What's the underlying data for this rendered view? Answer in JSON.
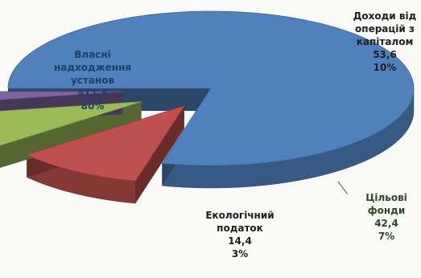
{
  "chart_data": {
    "type": "pie",
    "title": "",
    "slices": [
      {
        "label_lines": [
          "Власні",
          "надходження",
          "установ"
        ],
        "value": 411.8,
        "percent": "80%",
        "color": "#4f81bd"
      },
      {
        "label_lines": [
          "Доходи від",
          "операцій з",
          "капіталом"
        ],
        "value": 53.6,
        "percent": "10%",
        "color": "#c0504d"
      },
      {
        "label_lines": [
          "Цільові",
          "фонди"
        ],
        "value": 42.4,
        "percent": "7%",
        "color": "#9bbb59"
      },
      {
        "label_lines": [
          "Екологічний",
          "податок"
        ],
        "value": 14.4,
        "percent": "3%",
        "color": "#8064a2"
      }
    ],
    "value_format": "comma-decimal",
    "legend": "none",
    "style": "3d-exploded"
  }
}
